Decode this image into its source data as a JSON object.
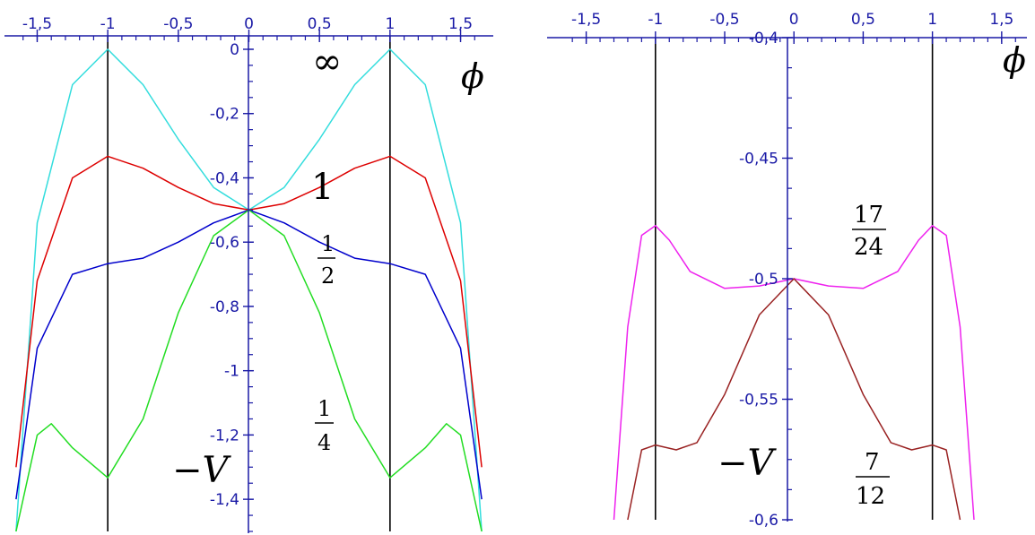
{
  "colors": {
    "axis": "#1a1aa6",
    "vline": "#000000",
    "cyan": "#33dddd",
    "red": "#dd0000",
    "blue": "#0000cc",
    "green": "#22dd22",
    "magenta": "#ee22ee",
    "brown": "#992222"
  },
  "chart_data": [
    {
      "type": "line",
      "xlabel": "ϕ",
      "ylabel": "−V",
      "xlim": [
        -1.7,
        1.7
      ],
      "ylim": [
        -1.5,
        0
      ],
      "x_ticks": [
        "-1,5",
        "-1",
        "-0,5",
        "0",
        "0,5",
        "1",
        "1,5"
      ],
      "x_tick_values": [
        -1.5,
        -1,
        -0.5,
        0,
        0.5,
        1,
        1.5
      ],
      "y_ticks": [
        "0",
        "-0,2",
        "-0,4",
        "-0,6",
        "-0,8",
        "-1",
        "-1,2",
        "-1,4"
      ],
      "y_tick_values": [
        0,
        -0.2,
        -0.4,
        -0.6,
        -0.8,
        -1,
        -1.2,
        -1.4
      ],
      "vertical_lines": [
        -1,
        1
      ],
      "series": [
        {
          "name": "∞",
          "color": "cyan",
          "x": [
            -1.65,
            -1.5,
            -1.25,
            -1,
            -0.75,
            -0.5,
            -0.25,
            0,
            0.25,
            0.5,
            0.75,
            1,
            1.25,
            1.5,
            1.65
          ],
          "y": [
            -1.5,
            -0.54,
            -0.11,
            0,
            -0.11,
            -0.28,
            -0.43,
            -0.5,
            -0.43,
            -0.28,
            -0.11,
            0,
            -0.11,
            -0.54,
            -1.5
          ]
        },
        {
          "name": "1",
          "color": "red",
          "x": [
            -1.65,
            -1.5,
            -1.25,
            -1,
            -0.75,
            -0.5,
            -0.25,
            0,
            0.25,
            0.5,
            0.75,
            1,
            1.25,
            1.5,
            1.65
          ],
          "y": [
            -1.3,
            -0.72,
            -0.4,
            -0.333,
            -0.37,
            -0.43,
            -0.48,
            -0.5,
            -0.48,
            -0.43,
            -0.37,
            -0.333,
            -0.4,
            -0.72,
            -1.3
          ]
        },
        {
          "name": "1/2",
          "color": "blue",
          "x": [
            -1.65,
            -1.5,
            -1.25,
            -1,
            -0.75,
            -0.5,
            -0.25,
            0,
            0.25,
            0.5,
            0.75,
            1,
            1.25,
            1.5,
            1.65
          ],
          "y": [
            -1.4,
            -0.93,
            -0.7,
            -0.667,
            -0.65,
            -0.6,
            -0.54,
            -0.5,
            -0.54,
            -0.6,
            -0.65,
            -0.667,
            -0.7,
            -0.93,
            -1.4
          ]
        },
        {
          "name": "1/4",
          "color": "green",
          "x": [
            -1.65,
            -1.5,
            -1.4,
            -1.25,
            -1,
            -0.75,
            -0.5,
            -0.25,
            0,
            0.25,
            0.5,
            0.75,
            1,
            1.25,
            1.4,
            1.5,
            1.65
          ],
          "y": [
            -1.5,
            -1.2,
            -1.165,
            -1.24,
            -1.333,
            -1.15,
            -0.82,
            -0.58,
            -0.5,
            -0.58,
            -0.82,
            -1.15,
            -1.333,
            -1.24,
            -1.165,
            -1.2,
            -1.5
          ]
        }
      ],
      "labels": [
        "∞",
        "1",
        "1/2",
        "1/4"
      ]
    },
    {
      "type": "line",
      "xlabel": "ϕ",
      "ylabel": "−V",
      "xlim": [
        -1.75,
        1.65
      ],
      "ylim": [
        -0.6,
        -0.4
      ],
      "x_ticks": [
        "-1,5",
        "-1",
        "-0,5",
        "0",
        "0,5",
        "1",
        "1,5"
      ],
      "x_tick_values": [
        -1.5,
        -1,
        -0.5,
        0,
        0.5,
        1,
        1.5
      ],
      "y_ticks": [
        "-0,4",
        "-0,45",
        "-0,5",
        "-0,55",
        "-0,6"
      ],
      "y_tick_values": [
        -0.4,
        -0.45,
        -0.5,
        -0.55,
        -0.6
      ],
      "vertical_lines": [
        -1,
        1
      ],
      "series": [
        {
          "name": "17/24",
          "color": "magenta",
          "x": [
            -1.3,
            -1.2,
            -1.1,
            -1,
            -0.9,
            -0.75,
            -0.5,
            -0.25,
            0,
            0.25,
            0.5,
            0.75,
            0.9,
            1,
            1.1,
            1.2,
            1.3
          ],
          "y": [
            -0.6,
            -0.52,
            -0.482,
            -0.478,
            -0.484,
            -0.497,
            -0.504,
            -0.503,
            -0.5,
            -0.503,
            -0.504,
            -0.497,
            -0.484,
            -0.478,
            -0.482,
            -0.52,
            -0.6
          ]
        },
        {
          "name": "7/12",
          "color": "brown",
          "x": [
            -1.2,
            -1.1,
            -1,
            -0.85,
            -0.7,
            -0.5,
            -0.25,
            0,
            0.25,
            0.5,
            0.7,
            0.85,
            1,
            1.1,
            1.2
          ],
          "y": [
            -0.6,
            -0.571,
            -0.569,
            -0.571,
            -0.568,
            -0.548,
            -0.515,
            -0.5,
            -0.515,
            -0.548,
            -0.568,
            -0.571,
            -0.569,
            -0.571,
            -0.6
          ]
        }
      ],
      "labels": [
        "17/24",
        "7/12"
      ]
    }
  ]
}
